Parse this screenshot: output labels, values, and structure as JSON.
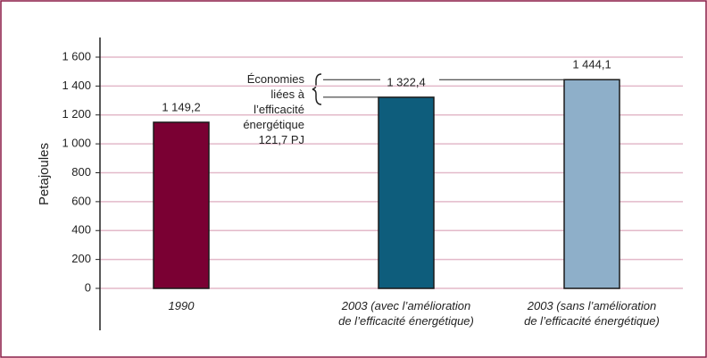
{
  "chart_data": {
    "type": "bar",
    "ylabel": "Petajoules",
    "categories": [
      "1990",
      "2003 (avec l’amélioration\nde l’efficacité énergétique)",
      "2003 (sans l’amélioration\nde l’efficacité énergétique)"
    ],
    "values": [
      1149.2,
      1322.4,
      1444.1
    ],
    "value_labels": [
      "1 149,2",
      "1 322,4",
      "1 444,1"
    ],
    "colors": [
      "#7a0033",
      "#0e5d7c",
      "#8eafc9"
    ],
    "ylim": [
      0,
      1600
    ],
    "yticks": [
      0,
      200,
      400,
      600,
      800,
      {
        "value": 1000,
        "label": "1 000"
      },
      {
        "value": 1200,
        "label": "1 200"
      },
      {
        "value": 1400,
        "label": "1 400"
      },
      {
        "value": 1600,
        "label": "1 600"
      }
    ],
    "grid": true,
    "annotation": "Économies\nliées à\nl’efficacité\nénergétique\n121,7 PJ"
  }
}
